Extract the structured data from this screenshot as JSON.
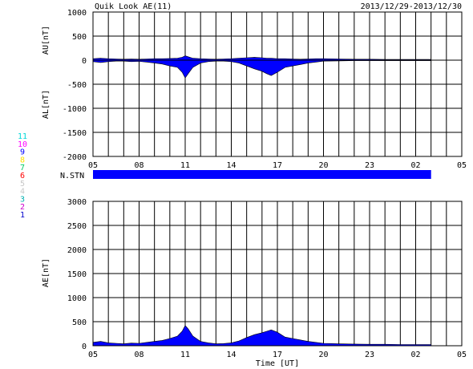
{
  "chart_data": [
    {
      "type": "area",
      "panel": "AU / AL",
      "title": "Quik Look AE(11)",
      "date_range": "2013/12/29-2013/12/30",
      "ylabel_upper": "AU[nT]",
      "ylabel_lower": "AL[nT]",
      "ylim": [
        -2000,
        1000
      ],
      "yticks": [
        "1000",
        "500",
        "0",
        "-500",
        "-1000",
        "-1500",
        "-2000"
      ],
      "xticks": [
        "05",
        "08",
        "11",
        "14",
        "17",
        "20",
        "23",
        "02",
        "05"
      ],
      "xlim_hours": [
        5,
        29
      ],
      "data_end_hour": 27,
      "grid": true,
      "series": [
        {
          "name": "AU",
          "color": "#0000ff",
          "x": [
            5.0,
            5.5,
            6.0,
            6.5,
            7.0,
            7.5,
            8.0,
            8.5,
            9.0,
            9.5,
            10.0,
            10.5,
            10.8,
            11.0,
            11.2,
            11.5,
            12.0,
            12.5,
            13.0,
            13.5,
            14.0,
            14.5,
            15.0,
            15.5,
            16.0,
            16.3,
            16.6,
            17.0,
            17.5,
            18.0,
            18.5,
            19.0,
            19.5,
            20.0,
            21.0,
            22.0,
            23.0,
            24.0,
            25.0,
            26.0,
            27.0
          ],
          "values": [
            30,
            40,
            30,
            25,
            20,
            25,
            20,
            25,
            30,
            30,
            35,
            40,
            60,
            90,
            70,
            40,
            30,
            25,
            20,
            25,
            30,
            40,
            50,
            60,
            50,
            40,
            40,
            30,
            30,
            25,
            20,
            25,
            30,
            30,
            25,
            20,
            20,
            15,
            15,
            15,
            15
          ]
        },
        {
          "name": "AL",
          "color": "#0000ff",
          "x": [
            5.0,
            5.5,
            6.0,
            6.5,
            7.0,
            7.5,
            8.0,
            8.5,
            9.0,
            9.5,
            10.0,
            10.5,
            10.8,
            11.0,
            11.2,
            11.5,
            12.0,
            12.5,
            13.0,
            13.5,
            14.0,
            14.5,
            15.0,
            15.5,
            16.0,
            16.3,
            16.6,
            17.0,
            17.5,
            18.0,
            18.5,
            19.0,
            19.5,
            20.0,
            21.0,
            22.0,
            23.0,
            24.0,
            25.0,
            26.0,
            27.0
          ],
          "values": [
            -30,
            -50,
            -30,
            -20,
            -20,
            -30,
            -25,
            -40,
            -60,
            -80,
            -120,
            -150,
            -250,
            -370,
            -280,
            -150,
            -60,
            -30,
            -20,
            -20,
            -30,
            -60,
            -120,
            -180,
            -230,
            -280,
            -320,
            -250,
            -150,
            -120,
            -90,
            -60,
            -40,
            -20,
            -15,
            -10,
            -10,
            -10,
            -10,
            -10,
            -10
          ]
        }
      ]
    },
    {
      "type": "bar",
      "panel": "N.STN",
      "label": "N.STN",
      "color": "#0000ff",
      "x_range_hours": [
        5,
        27
      ],
      "legend_entries": [
        {
          "label": "11",
          "color": "#00d8d8"
        },
        {
          "label": "10",
          "color": "#ff00ff"
        },
        {
          "label": "9",
          "color": "#0000ff"
        },
        {
          "label": "8",
          "color": "#ffe000"
        },
        {
          "label": "7",
          "color": "#00cc66"
        },
        {
          "label": "6",
          "color": "#ff0000"
        },
        {
          "label": "5",
          "color": "#c8c8c8"
        },
        {
          "label": "4",
          "color": "#c8c8c8"
        },
        {
          "label": "3",
          "color": "#00b0b0"
        },
        {
          "label": "2",
          "color": "#cc00cc"
        },
        {
          "label": "1",
          "color": "#0000cc"
        }
      ]
    },
    {
      "type": "area",
      "panel": "AE",
      "ylabel": "AE[nT]",
      "xlabel": "Time [UT]",
      "ylim": [
        0,
        3000
      ],
      "yticks": [
        "3000",
        "2500",
        "2000",
        "1500",
        "1000",
        "500",
        "0"
      ],
      "xticks": [
        "05",
        "08",
        "11",
        "14",
        "17",
        "20",
        "23",
        "02",
        "05"
      ],
      "xlim_hours": [
        5,
        29
      ],
      "data_end_hour": 27,
      "grid": true,
      "series": [
        {
          "name": "AE",
          "color": "#0000ff",
          "x": [
            5.0,
            5.5,
            6.0,
            6.5,
            7.0,
            7.5,
            8.0,
            8.5,
            9.0,
            9.5,
            10.0,
            10.5,
            10.8,
            11.0,
            11.2,
            11.5,
            12.0,
            12.5,
            13.0,
            13.5,
            14.0,
            14.5,
            15.0,
            15.5,
            16.0,
            16.3,
            16.6,
            17.0,
            17.5,
            18.0,
            18.5,
            19.0,
            19.5,
            20.0,
            21.0,
            22.0,
            23.0,
            24.0,
            25.0,
            26.0,
            27.0
          ],
          "values": [
            70,
            90,
            60,
            50,
            40,
            55,
            50,
            70,
            90,
            110,
            150,
            200,
            300,
            420,
            350,
            200,
            90,
            60,
            40,
            45,
            60,
            100,
            170,
            230,
            270,
            300,
            330,
            280,
            180,
            150,
            120,
            90,
            70,
            50,
            40,
            35,
            30,
            30,
            25,
            25,
            25
          ]
        }
      ]
    }
  ]
}
